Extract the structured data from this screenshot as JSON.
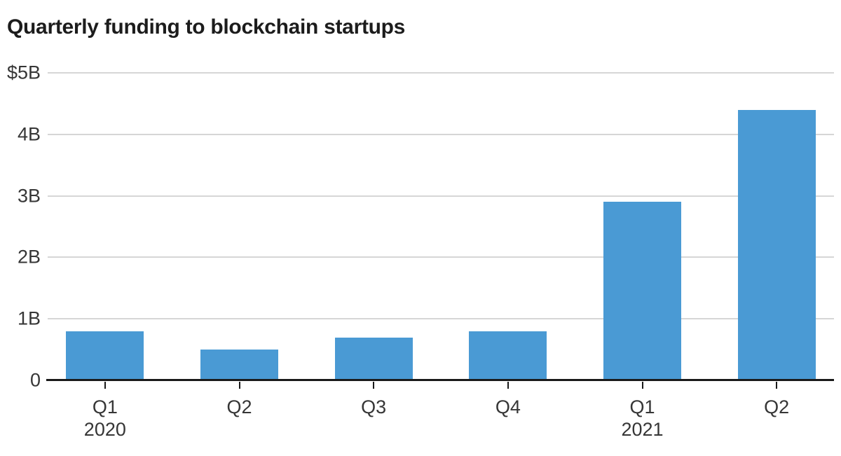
{
  "chart": {
    "title": "Quarterly funding to blockchain startups"
  },
  "chart_data": {
    "type": "bar",
    "title": "Quarterly funding to blockchain startups",
    "categories": [
      "Q1 2020",
      "Q2 2020",
      "Q3 2020",
      "Q4 2020",
      "Q1 2021",
      "Q2 2021"
    ],
    "values": [
      0.8,
      0.5,
      0.7,
      0.8,
      2.9,
      4.4
    ],
    "unit": "billions of dollars",
    "xlabel": "",
    "ylabel": "",
    "ylim": [
      0,
      5
    ],
    "grid": "horizontal",
    "legend": "none",
    "y_ticks": [
      {
        "value": 0,
        "label": "0"
      },
      {
        "value": 1,
        "label": "1B"
      },
      {
        "value": 2,
        "label": "2B"
      },
      {
        "value": 3,
        "label": "3B"
      },
      {
        "value": 4,
        "label": "4B"
      },
      {
        "value": 5,
        "label": "$5B"
      }
    ],
    "x_ticks": [
      {
        "quarter": "Q1",
        "year": "2020"
      },
      {
        "quarter": "Q2"
      },
      {
        "quarter": "Q3"
      },
      {
        "quarter": "Q4"
      },
      {
        "quarter": "Q1",
        "year": "2021"
      },
      {
        "quarter": "Q2"
      }
    ],
    "colors": {
      "bar": "#4a9ad4",
      "gridline": "#d6d6d6",
      "axis_line": "#1a1a1a",
      "tick_label": "#363636",
      "title": "#1c1c1c",
      "background": "#ffffff"
    }
  }
}
